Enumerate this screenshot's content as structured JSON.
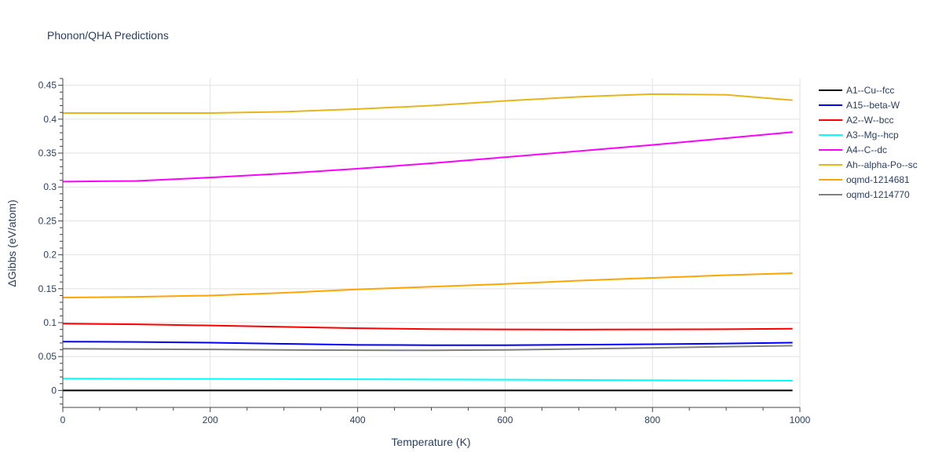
{
  "chart_data": {
    "type": "line",
    "title": "Phonon/QHA Predictions",
    "xlabel": "Temperature (K)",
    "ylabel": "ΔGibbs (eV/atom)",
    "xlim": [
      0,
      1000
    ],
    "ylim": [
      -0.025,
      0.46
    ],
    "x_ticks": [
      0,
      200,
      400,
      600,
      800,
      1000
    ],
    "y_ticks": [
      0,
      0.05,
      0.1,
      0.15,
      0.2,
      0.25,
      0.3,
      0.35,
      0.4,
      0.45
    ],
    "grid": true,
    "legend_position": "top-right",
    "x": [
      0,
      100,
      200,
      300,
      400,
      500,
      600,
      700,
      800,
      900,
      990
    ],
    "series": [
      {
        "name": "A1--Cu--fcc",
        "color": "#000000",
        "values": [
          0,
          0,
          0,
          0,
          0,
          0,
          0,
          0,
          0,
          0,
          0
        ]
      },
      {
        "name": "A15--beta-W",
        "color": "#0000ff",
        "values": [
          0.072,
          0.0715,
          0.0705,
          0.0688,
          0.0672,
          0.0668,
          0.0668,
          0.0674,
          0.0682,
          0.0692,
          0.0705
        ]
      },
      {
        "name": "A2--W--bcc",
        "color": "#ff0000",
        "values": [
          0.0985,
          0.0975,
          0.0958,
          0.0938,
          0.0918,
          0.0905,
          0.09,
          0.0898,
          0.09,
          0.0903,
          0.091
        ]
      },
      {
        "name": "A3--Mg--hcp",
        "color": "#00ffff",
        "values": [
          0.0175,
          0.0173,
          0.0171,
          0.0168,
          0.0165,
          0.0162,
          0.0159,
          0.0155,
          0.0151,
          0.0147,
          0.0143
        ]
      },
      {
        "name": "A4--C--dc",
        "color": "#ff00ff",
        "values": [
          0.308,
          0.309,
          0.314,
          0.32,
          0.327,
          0.335,
          0.344,
          0.353,
          0.362,
          0.372,
          0.381
        ]
      },
      {
        "name": "Ah--alpha-Po--sc",
        "color": "#e5b51a",
        "values": [
          0.409,
          0.409,
          0.409,
          0.411,
          0.415,
          0.42,
          0.427,
          0.433,
          0.437,
          0.436,
          0.428
        ]
      },
      {
        "name": "oqmd-1214681",
        "color": "#ffa500",
        "values": [
          0.137,
          0.138,
          0.14,
          0.144,
          0.149,
          0.153,
          0.157,
          0.162,
          0.166,
          0.17,
          0.173
        ]
      },
      {
        "name": "oqmd-1214770",
        "color": "#808080",
        "values": [
          0.0615,
          0.061,
          0.0605,
          0.0598,
          0.0593,
          0.0592,
          0.0598,
          0.0612,
          0.0628,
          0.0645,
          0.066
        ]
      }
    ]
  }
}
